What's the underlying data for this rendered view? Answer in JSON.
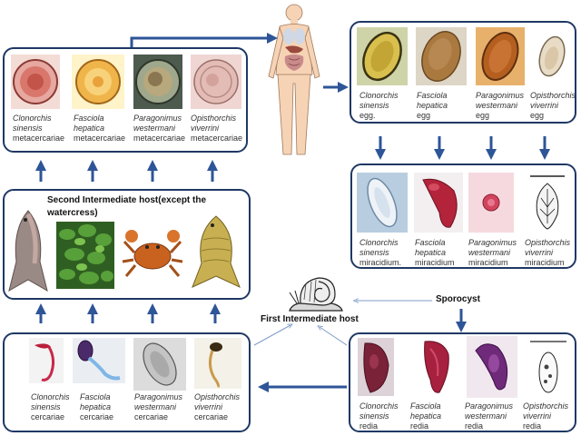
{
  "labels": {
    "second_host": "Second Intermediate host(except the watercress)",
    "first_host": "First Intermediate host",
    "sporocyst": "Sporocyst"
  },
  "metacercariae": [
    {
      "species": "Clonorchis sinensis",
      "stage": "metacercariae"
    },
    {
      "species": "Fasciola hepatica",
      "stage": "metacercariae"
    },
    {
      "species": "Paragonimus westermani",
      "stage": "metacercariae"
    },
    {
      "species": "Opisthorchis viverrini",
      "stage": "metacercariae"
    }
  ],
  "eggs": [
    {
      "species": "Clonorchis sinensis",
      "stage": "egg."
    },
    {
      "species": "Fasciola hepatica",
      "stage": "egg"
    },
    {
      "species": "Paragonimus westermani",
      "stage": "egg"
    },
    {
      "species": "Opisthorchis viverrini",
      "stage": "egg"
    }
  ],
  "miracidium": [
    {
      "species": "Clonorchis sinensis",
      "stage": "miracidium."
    },
    {
      "species": "Fasciola hepatica",
      "stage": "miracidium"
    },
    {
      "species": "Paragonimus westermani",
      "stage": "miracidium"
    },
    {
      "species": "Opisthorchis viverrini",
      "stage": "miracidium"
    }
  ],
  "redia": [
    {
      "species": "Clonorchis sinensis",
      "stage": "redia"
    },
    {
      "species": "Fasciola hepatica",
      "stage": "redia"
    },
    {
      "species": "Paragonimus westermani",
      "stage": "redia"
    },
    {
      "species": "Opisthorchis viverrini",
      "stage": "redia"
    }
  ],
  "cercariae": [
    {
      "species": "Clonorchis sinensis",
      "stage": "cercariae"
    },
    {
      "species": "Fasciola hepatica",
      "stage": "cercariae"
    },
    {
      "species": "Paragonimus westermani",
      "stage": "cercariae"
    },
    {
      "species": "Opisthorchis viverrini",
      "stage": "cercariae"
    }
  ],
  "colors": {
    "panel_border": "#1f3864",
    "arrow": "#2e5597",
    "thin_arrow": "#7f9cc9"
  }
}
